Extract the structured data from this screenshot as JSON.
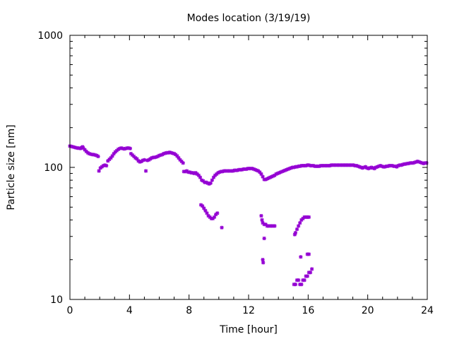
{
  "chart_data": {
    "type": "scatter",
    "title": "Modes location (3/19/19)",
    "xlabel": "Time [hour]",
    "ylabel": "Particle size [nm]",
    "xlim": [
      0,
      24
    ],
    "ylim": [
      10,
      1000
    ],
    "yscale": "log",
    "grid": false,
    "legend": "none",
    "marker_color": "#9400d3",
    "xticks": [
      "0",
      "4",
      "8",
      "12",
      "16",
      "20",
      "24"
    ],
    "yticks": [
      "10",
      "100",
      "1000"
    ],
    "series": [
      {
        "points": [
          [
            0.0,
            145
          ],
          [
            0.1,
            144
          ],
          [
            0.2,
            143
          ],
          [
            0.3,
            142
          ],
          [
            0.4,
            141
          ],
          [
            0.5,
            140
          ],
          [
            0.6,
            140
          ],
          [
            0.7,
            139
          ],
          [
            0.8,
            141
          ],
          [
            0.85,
            143
          ],
          [
            0.9,
            140
          ],
          [
            1.0,
            136
          ],
          [
            1.1,
            132
          ],
          [
            1.2,
            129
          ],
          [
            1.3,
            127
          ],
          [
            1.4,
            126
          ],
          [
            1.5,
            125
          ],
          [
            1.6,
            125
          ],
          [
            1.7,
            124
          ],
          [
            1.8,
            123
          ],
          [
            1.9,
            121
          ],
          [
            1.95,
            94
          ],
          [
            2.05,
            99
          ],
          [
            2.15,
            101
          ],
          [
            2.25,
            103
          ],
          [
            2.35,
            104
          ],
          [
            2.45,
            103
          ],
          [
            2.55,
            112
          ],
          [
            2.65,
            115
          ],
          [
            2.75,
            118
          ],
          [
            2.85,
            122
          ],
          [
            2.95,
            127
          ],
          [
            3.05,
            131
          ],
          [
            3.15,
            134
          ],
          [
            3.25,
            137
          ],
          [
            3.35,
            139
          ],
          [
            3.45,
            140
          ],
          [
            3.55,
            139
          ],
          [
            3.65,
            138
          ],
          [
            3.75,
            139
          ],
          [
            3.85,
            140
          ],
          [
            3.95,
            140
          ],
          [
            4.05,
            139
          ],
          [
            4.1,
            127
          ],
          [
            4.2,
            124
          ],
          [
            4.3,
            121
          ],
          [
            4.4,
            118
          ],
          [
            4.5,
            116
          ],
          [
            4.6,
            112
          ],
          [
            4.7,
            110
          ],
          [
            4.8,
            111
          ],
          [
            4.9,
            113
          ],
          [
            5.0,
            114
          ],
          [
            5.1,
            94
          ],
          [
            5.2,
            113
          ],
          [
            5.3,
            114
          ],
          [
            5.4,
            116
          ],
          [
            5.5,
            118
          ],
          [
            5.6,
            119
          ],
          [
            5.7,
            119
          ],
          [
            5.8,
            120
          ],
          [
            5.9,
            121
          ],
          [
            6.0,
            123
          ],
          [
            6.1,
            124
          ],
          [
            6.2,
            125
          ],
          [
            6.3,
            127
          ],
          [
            6.4,
            128
          ],
          [
            6.5,
            129
          ],
          [
            6.6,
            129
          ],
          [
            6.7,
            130
          ],
          [
            6.8,
            129
          ],
          [
            6.9,
            128
          ],
          [
            7.0,
            127
          ],
          [
            7.1,
            125
          ],
          [
            7.2,
            122
          ],
          [
            7.3,
            118
          ],
          [
            7.4,
            114
          ],
          [
            7.5,
            111
          ],
          [
            7.6,
            108
          ],
          [
            7.65,
            93
          ],
          [
            7.75,
            93
          ],
          [
            7.85,
            94
          ],
          [
            7.95,
            92
          ],
          [
            8.05,
            92
          ],
          [
            8.15,
            91
          ],
          [
            8.25,
            91
          ],
          [
            8.35,
            90
          ],
          [
            8.45,
            91
          ],
          [
            8.55,
            89
          ],
          [
            8.65,
            87
          ],
          [
            8.75,
            84
          ],
          [
            8.85,
            80
          ],
          [
            8.95,
            79
          ],
          [
            9.05,
            77
          ],
          [
            9.15,
            77
          ],
          [
            9.25,
            76
          ],
          [
            9.35,
            75
          ],
          [
            9.45,
            76
          ],
          [
            9.55,
            80
          ],
          [
            9.65,
            84
          ],
          [
            9.75,
            87
          ],
          [
            9.85,
            89
          ],
          [
            9.95,
            91
          ],
          [
            10.05,
            92
          ],
          [
            10.15,
            93
          ],
          [
            10.25,
            93
          ],
          [
            10.35,
            94
          ],
          [
            10.45,
            94
          ],
          [
            10.55,
            94
          ],
          [
            10.65,
            94
          ],
          [
            10.75,
            94
          ],
          [
            10.85,
            94
          ],
          [
            10.95,
            94
          ],
          [
            11.05,
            95
          ],
          [
            11.15,
            95
          ],
          [
            11.25,
            95
          ],
          [
            11.35,
            96
          ],
          [
            11.45,
            96
          ],
          [
            11.55,
            96
          ],
          [
            11.65,
            97
          ],
          [
            11.75,
            97
          ],
          [
            11.85,
            97
          ],
          [
            11.95,
            98
          ],
          [
            12.05,
            98
          ],
          [
            12.15,
            98
          ],
          [
            12.25,
            98
          ],
          [
            12.35,
            97
          ],
          [
            12.45,
            96
          ],
          [
            12.55,
            95
          ],
          [
            12.65,
            94
          ],
          [
            12.75,
            92
          ],
          [
            12.85,
            89
          ],
          [
            12.95,
            85
          ],
          [
            13.05,
            81
          ],
          [
            13.15,
            81
          ],
          [
            13.25,
            82
          ],
          [
            13.35,
            83
          ],
          [
            13.45,
            84
          ],
          [
            13.55,
            85
          ],
          [
            13.65,
            86
          ],
          [
            13.75,
            87
          ],
          [
            13.85,
            89
          ],
          [
            13.95,
            90
          ],
          [
            14.05,
            91
          ],
          [
            14.15,
            92
          ],
          [
            14.25,
            93
          ],
          [
            14.35,
            94
          ],
          [
            14.45,
            95
          ],
          [
            14.55,
            96
          ],
          [
            14.65,
            97
          ],
          [
            14.75,
            98
          ],
          [
            14.85,
            99
          ],
          [
            14.95,
            100
          ],
          [
            15.05,
            100
          ],
          [
            15.15,
            101
          ],
          [
            15.25,
            101
          ],
          [
            15.35,
            102
          ],
          [
            15.45,
            102
          ],
          [
            15.55,
            103
          ],
          [
            15.65,
            103
          ],
          [
            15.75,
            103
          ],
          [
            15.85,
            103
          ],
          [
            15.95,
            104
          ],
          [
            16.05,
            104
          ],
          [
            16.15,
            103
          ],
          [
            16.25,
            103
          ],
          [
            16.35,
            103
          ],
          [
            16.45,
            102
          ],
          [
            16.55,
            102
          ],
          [
            16.65,
            102
          ],
          [
            16.75,
            102
          ],
          [
            16.85,
            103
          ],
          [
            16.95,
            103
          ],
          [
            17.05,
            103
          ],
          [
            17.15,
            103
          ],
          [
            17.25,
            103
          ],
          [
            17.35,
            103
          ],
          [
            17.45,
            103
          ],
          [
            17.55,
            104
          ],
          [
            17.65,
            104
          ],
          [
            17.75,
            104
          ],
          [
            17.85,
            104
          ],
          [
            17.95,
            104
          ],
          [
            18.05,
            104
          ],
          [
            18.15,
            104
          ],
          [
            18.25,
            104
          ],
          [
            18.35,
            104
          ],
          [
            18.45,
            104
          ],
          [
            18.55,
            104
          ],
          [
            18.65,
            104
          ],
          [
            18.75,
            104
          ],
          [
            18.85,
            104
          ],
          [
            18.95,
            104
          ],
          [
            19.05,
            104
          ],
          [
            19.15,
            103
          ],
          [
            19.25,
            103
          ],
          [
            19.35,
            102
          ],
          [
            19.45,
            101
          ],
          [
            19.55,
            100
          ],
          [
            19.65,
            99
          ],
          [
            19.75,
            100
          ],
          [
            19.85,
            101
          ],
          [
            19.95,
            99
          ],
          [
            20.05,
            98
          ],
          [
            20.15,
            99
          ],
          [
            20.25,
            100
          ],
          [
            20.35,
            99
          ],
          [
            20.45,
            98
          ],
          [
            20.55,
            100
          ],
          [
            20.65,
            101
          ],
          [
            20.75,
            102
          ],
          [
            20.85,
            103
          ],
          [
            20.95,
            102
          ],
          [
            21.05,
            101
          ],
          [
            21.15,
            101
          ],
          [
            21.25,
            102
          ],
          [
            21.35,
            102
          ],
          [
            21.45,
            103
          ],
          [
            21.55,
            103
          ],
          [
            21.65,
            103
          ],
          [
            21.75,
            102
          ],
          [
            21.85,
            102
          ],
          [
            21.95,
            101
          ],
          [
            22.05,
            103
          ],
          [
            22.15,
            104
          ],
          [
            22.25,
            104
          ],
          [
            22.35,
            105
          ],
          [
            22.45,
            106
          ],
          [
            22.55,
            106
          ],
          [
            22.65,
            107
          ],
          [
            22.75,
            107
          ],
          [
            22.85,
            108
          ],
          [
            22.95,
            108
          ],
          [
            23.05,
            108
          ],
          [
            23.15,
            109
          ],
          [
            23.25,
            110
          ],
          [
            23.35,
            111
          ],
          [
            23.45,
            110
          ],
          [
            23.55,
            109
          ],
          [
            23.65,
            108
          ],
          [
            23.75,
            107
          ],
          [
            23.85,
            108
          ],
          [
            23.95,
            108
          ],
          [
            8.8,
            52
          ],
          [
            8.9,
            51
          ],
          [
            9.0,
            49
          ],
          [
            9.1,
            47
          ],
          [
            9.2,
            45
          ],
          [
            9.3,
            43
          ],
          [
            9.4,
            42
          ],
          [
            9.5,
            41
          ],
          [
            9.6,
            41
          ],
          [
            9.7,
            42
          ],
          [
            9.8,
            44
          ],
          [
            9.9,
            45
          ],
          [
            10.2,
            35
          ],
          [
            12.85,
            43
          ],
          [
            12.9,
            40
          ],
          [
            12.95,
            38
          ],
          [
            13.05,
            37
          ],
          [
            13.15,
            37
          ],
          [
            13.25,
            36
          ],
          [
            13.35,
            36
          ],
          [
            13.45,
            36
          ],
          [
            13.55,
            36
          ],
          [
            13.65,
            36
          ],
          [
            13.75,
            36
          ],
          [
            12.95,
            20
          ],
          [
            12.98,
            19
          ],
          [
            13.05,
            29
          ],
          [
            15.1,
            31
          ],
          [
            15.15,
            32
          ],
          [
            15.25,
            34
          ],
          [
            15.35,
            36
          ],
          [
            15.45,
            38
          ],
          [
            15.55,
            40
          ],
          [
            15.65,
            41
          ],
          [
            15.75,
            42
          ],
          [
            15.85,
            42
          ],
          [
            15.95,
            42
          ],
          [
            16.05,
            42
          ],
          [
            15.05,
            13
          ],
          [
            15.15,
            13
          ],
          [
            15.25,
            14
          ],
          [
            15.35,
            14
          ],
          [
            15.45,
            13
          ],
          [
            15.55,
            13
          ],
          [
            15.5,
            21
          ],
          [
            15.65,
            14
          ],
          [
            15.75,
            14
          ],
          [
            15.85,
            15
          ],
          [
            15.95,
            15
          ],
          [
            16.05,
            16
          ],
          [
            15.95,
            22
          ],
          [
            16.05,
            22
          ],
          [
            16.15,
            16
          ],
          [
            16.25,
            17
          ]
        ]
      }
    ]
  }
}
